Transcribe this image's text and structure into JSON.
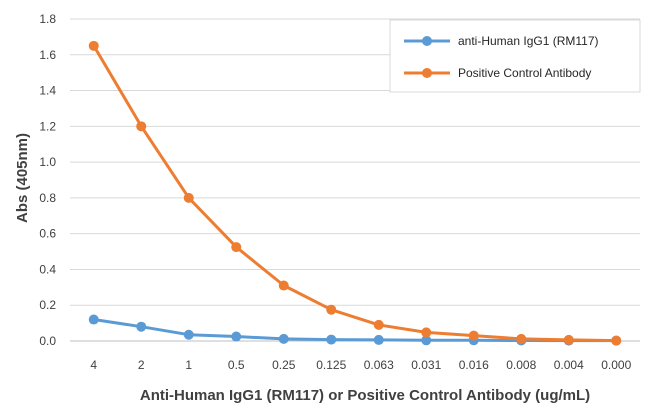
{
  "chart_data": {
    "type": "line",
    "title": "",
    "xlabel": "Anti-Human IgG1 (RM117) or Positive Control Antibody (ug/mL)",
    "ylabel": "Abs (405nm)",
    "categories": [
      "4",
      "2",
      "1",
      "0.5",
      "0.25",
      "0.125",
      "0.063",
      "0.031",
      "0.016",
      "0.008",
      "0.004",
      "0.000"
    ],
    "yticks": [
      "0.0",
      "0.2",
      "0.4",
      "0.6",
      "0.8",
      "1.0",
      "1.2",
      "1.4",
      "1.6",
      "1.8"
    ],
    "ylim": [
      0,
      1.8
    ],
    "grid": "horizontal",
    "legend_position": "top-right",
    "series": [
      {
        "name": "anti-Human IgG1 (RM117)",
        "color": "#5B9BD5",
        "values": [
          0.12,
          0.08,
          0.035,
          0.025,
          0.012,
          0.008,
          0.006,
          0.004,
          0.004,
          0.003,
          0.002,
          0.002
        ]
      },
      {
        "name": "Positive Control Antibody",
        "color": "#ED7D31",
        "values": [
          1.65,
          1.2,
          0.8,
          0.525,
          0.31,
          0.175,
          0.09,
          0.048,
          0.03,
          0.012,
          0.006,
          0.002
        ]
      }
    ]
  }
}
